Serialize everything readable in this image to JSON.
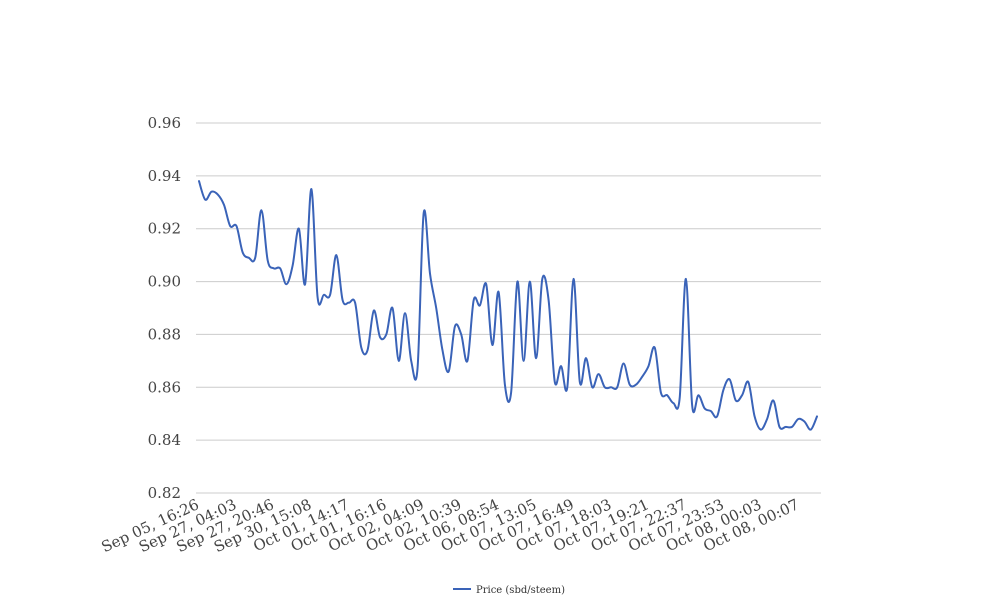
{
  "chart_data": {
    "type": "line",
    "ylim": [
      0.82,
      0.96
    ],
    "y_ticks": [
      "0.82",
      "0.84",
      "0.86",
      "0.88",
      "0.90",
      "0.92",
      "0.94",
      "0.96"
    ],
    "grid": "horizontal",
    "legend": "bottom-center",
    "x_tick_labels": [
      "Sep 05, 16:26",
      "Sep 27, 04:03",
      "Sep 27, 20:46",
      "Sep 30, 15:08",
      "Oct 01, 14:17",
      "Oct 01, 16:16",
      "Oct 02, 04:09",
      "Oct 02, 10:39",
      "Oct 06, 08:54",
      "Oct 07, 13:05",
      "Oct 07, 16:49",
      "Oct 07, 18:03",
      "Oct 07, 19:21",
      "Oct 07, 22:37",
      "Oct 07, 23:53",
      "Oct 08, 00:03",
      "Oct 08, 00:07"
    ],
    "series": [
      {
        "name": "Price (sbd/steem)",
        "color": "#3a63b8",
        "values": [
          0.938,
          0.931,
          0.934,
          0.933,
          0.929,
          0.921,
          0.921,
          0.911,
          0.909,
          0.909,
          0.927,
          0.908,
          0.905,
          0.905,
          0.899,
          0.906,
          0.92,
          0.899,
          0.935,
          0.894,
          0.895,
          0.895,
          0.91,
          0.893,
          0.892,
          0.892,
          0.875,
          0.874,
          0.889,
          0.879,
          0.88,
          0.89,
          0.87,
          0.888,
          0.87,
          0.867,
          0.926,
          0.903,
          0.89,
          0.874,
          0.866,
          0.883,
          0.88,
          0.87,
          0.893,
          0.891,
          0.899,
          0.876,
          0.896,
          0.861,
          0.858,
          0.9,
          0.87,
          0.9,
          0.871,
          0.901,
          0.893,
          0.862,
          0.868,
          0.86,
          0.901,
          0.862,
          0.871,
          0.86,
          0.865,
          0.86,
          0.86,
          0.86,
          0.869,
          0.861,
          0.861,
          0.864,
          0.868,
          0.875,
          0.858,
          0.857,
          0.854,
          0.856,
          0.901,
          0.853,
          0.857,
          0.852,
          0.851,
          0.849,
          0.859,
          0.863,
          0.855,
          0.857,
          0.862,
          0.849,
          0.844,
          0.848,
          0.855,
          0.845,
          0.845,
          0.845,
          0.848,
          0.847,
          0.844,
          0.849
        ]
      }
    ]
  }
}
